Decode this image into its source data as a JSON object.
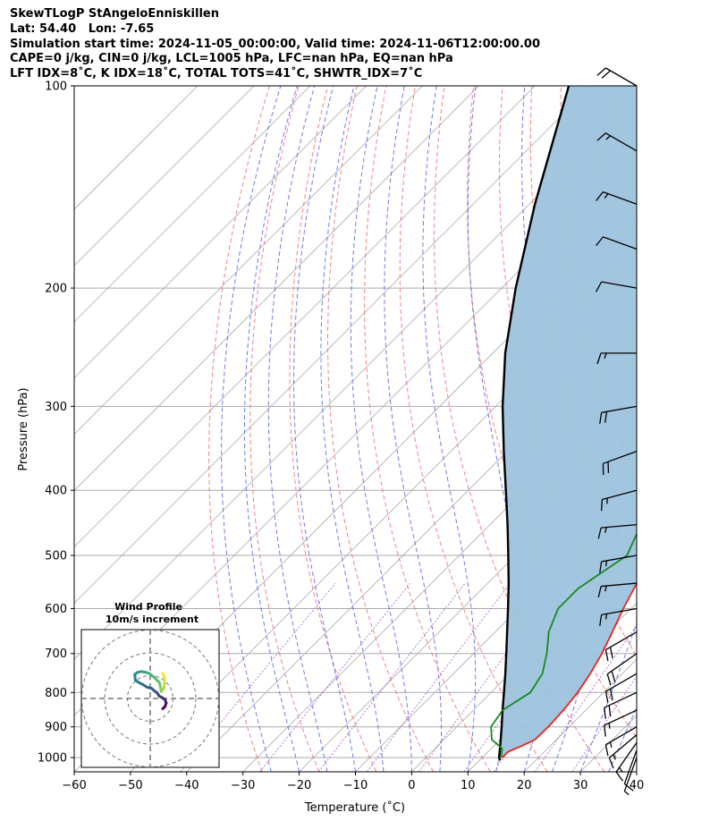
{
  "header": {
    "line1": "SkewTLogP StAngeloEnniskillen",
    "line2": "Lat: 54.40   Lon: -7.65",
    "line3": "Simulation start time: 2024-11-05_00:00:00, Valid time: 2024-11-06T12:00:00.00",
    "line4": "CAPE=0 j/kg, CIN=0 j/kg, LCL=1005 hPa, LFC=nan hPa, EQ=nan hPa",
    "line5": "LFT IDX=8˚C, K IDX=18˚C, TOTAL TOTS=41˚C, SHWTR_IDX=7˚C"
  },
  "chart_data": {
    "type": "skewt-logp",
    "xlabel": "Temperature (˚C)",
    "ylabel": "Pressure (hPa)",
    "xlim": [
      -60,
      40
    ],
    "ylim": [
      1050,
      100
    ],
    "x_ticks": [
      -60,
      -50,
      -40,
      -30,
      -20,
      -10,
      0,
      10,
      20,
      30,
      40
    ],
    "y_ticks": [
      1000,
      900,
      800,
      700,
      600,
      500,
      400,
      300,
      200,
      100
    ],
    "grid": true,
    "colors": {
      "temperature": "#e8231b",
      "dewpoint": "#178a1b",
      "parcel": "#000000",
      "shade": "#9ec3de",
      "dry_adiabats": "#f07070",
      "moist_adiabats": "#5566ee",
      "mixing_ratio": "#9944cc",
      "isotherms": "#aaaaaa"
    },
    "temperature": [
      [
        1000,
        13.5
      ],
      [
        980,
        13.6
      ],
      [
        960,
        15.0
      ],
      [
        940,
        16.2
      ],
      [
        900,
        16.3
      ],
      [
        850,
        16.0
      ],
      [
        800,
        15.4
      ],
      [
        750,
        14.3
      ],
      [
        700,
        12.8
      ],
      [
        650,
        10.8
      ],
      [
        600,
        8.6
      ],
      [
        550,
        6.5
      ],
      [
        500,
        5.0
      ],
      [
        450,
        3.0
      ],
      [
        400,
        0.7
      ],
      [
        350,
        -2.8
      ],
      [
        300,
        -6.5
      ],
      [
        270,
        -9.8
      ],
      [
        240,
        -13.5
      ],
      [
        220,
        -16.2
      ],
      [
        200,
        -18.7
      ],
      [
        190,
        -18.6
      ],
      [
        180,
        -17.2
      ],
      [
        170,
        -14.2
      ],
      [
        160,
        -8.0
      ],
      [
        150,
        -4.5
      ],
      [
        140,
        -2.5
      ],
      [
        130,
        2.3
      ],
      [
        120,
        3.6
      ],
      [
        110,
        4.8
      ],
      [
        100,
        6.2
      ]
    ],
    "dewpoint": [
      [
        1000,
        13.3
      ],
      [
        970,
        12.0
      ],
      [
        940,
        8.5
      ],
      [
        900,
        6.1
      ],
      [
        850,
        5.2
      ],
      [
        800,
        7.0
      ],
      [
        750,
        5.8
      ],
      [
        700,
        3.0
      ],
      [
        650,
        -0.5
      ],
      [
        600,
        -3.0
      ],
      [
        560,
        -3.0
      ],
      [
        500,
        -0.2
      ],
      [
        450,
        -3.2
      ],
      [
        400,
        -5.8
      ],
      [
        350,
        -8.7
      ],
      [
        330,
        -15.0
      ],
      [
        300,
        -23.8
      ],
      [
        280,
        -24.3
      ],
      [
        250,
        -26.5
      ],
      [
        220,
        -30.8
      ],
      [
        190,
        -34.0
      ],
      [
        170,
        -26.0
      ],
      [
        160,
        -21.5
      ],
      [
        150,
        -20.0
      ],
      [
        140,
        -25.0
      ],
      [
        130,
        -29.0
      ],
      [
        120,
        -31.5
      ],
      [
        110,
        -25.5
      ],
      [
        100,
        -20.2
      ]
    ],
    "parcel": [
      [
        1010,
        13.7
      ],
      [
        1000,
        13.0
      ],
      [
        950,
        10.6
      ],
      [
        900,
        8.0
      ],
      [
        850,
        5.2
      ],
      [
        800,
        2.3
      ],
      [
        750,
        -0.8
      ],
      [
        700,
        -4.2
      ],
      [
        650,
        -7.9
      ],
      [
        600,
        -11.9
      ],
      [
        550,
        -16.3
      ],
      [
        500,
        -21.3
      ],
      [
        450,
        -26.9
      ],
      [
        400,
        -33.3
      ],
      [
        350,
        -40.6
      ],
      [
        300,
        -48.8
      ],
      [
        250,
        -57.8
      ],
      [
        200,
        -67.5
      ],
      [
        150,
        -79.0
      ],
      [
        100,
        -94.0
      ]
    ],
    "wind_barbs": {
      "pressures": [
        1000,
        975,
        950,
        925,
        900,
        850,
        800,
        750,
        700,
        650,
        600,
        550,
        500,
        450,
        400,
        350,
        300,
        250,
        200,
        175,
        150,
        125,
        100
      ],
      "speed_kt": [
        5,
        10,
        15,
        15,
        15,
        15,
        20,
        20,
        20,
        20,
        15,
        15,
        15,
        15,
        15,
        20,
        20,
        15,
        10,
        10,
        15,
        15,
        20
      ],
      "direction_deg": [
        200,
        200,
        215,
        230,
        240,
        245,
        245,
        240,
        235,
        240,
        260,
        265,
        260,
        265,
        255,
        250,
        260,
        270,
        280,
        290,
        290,
        300,
        300
      ]
    },
    "hodograph": {
      "title": "Wind Profile",
      "subtitle": "10m/s increment",
      "rings_ms": [
        10,
        20,
        30
      ],
      "u": [
        5.5,
        6.5,
        7.0,
        6.5,
        5.0,
        4.0,
        3.0,
        2.0,
        0.5,
        -1.5,
        -3.0,
        -5.0,
        -6.5,
        -6.8,
        -5.5,
        -4.0,
        -2.0,
        -0.5,
        1.5,
        3.0,
        4.0,
        4.5,
        4.8,
        6.0,
        6.3,
        6.2,
        6.0,
        5.5
      ],
      "v": [
        -4.5,
        -3.5,
        -2.0,
        -0.5,
        0.5,
        1.0,
        2.5,
        3.2,
        4.5,
        5.0,
        6.0,
        7.0,
        8.0,
        10.5,
        11.5,
        11.8,
        11.5,
        11.0,
        9.5,
        8.0,
        7.0,
        5.0,
        3.0,
        4.5,
        6.5,
        8.5,
        10.0,
        11.0
      ]
    }
  }
}
